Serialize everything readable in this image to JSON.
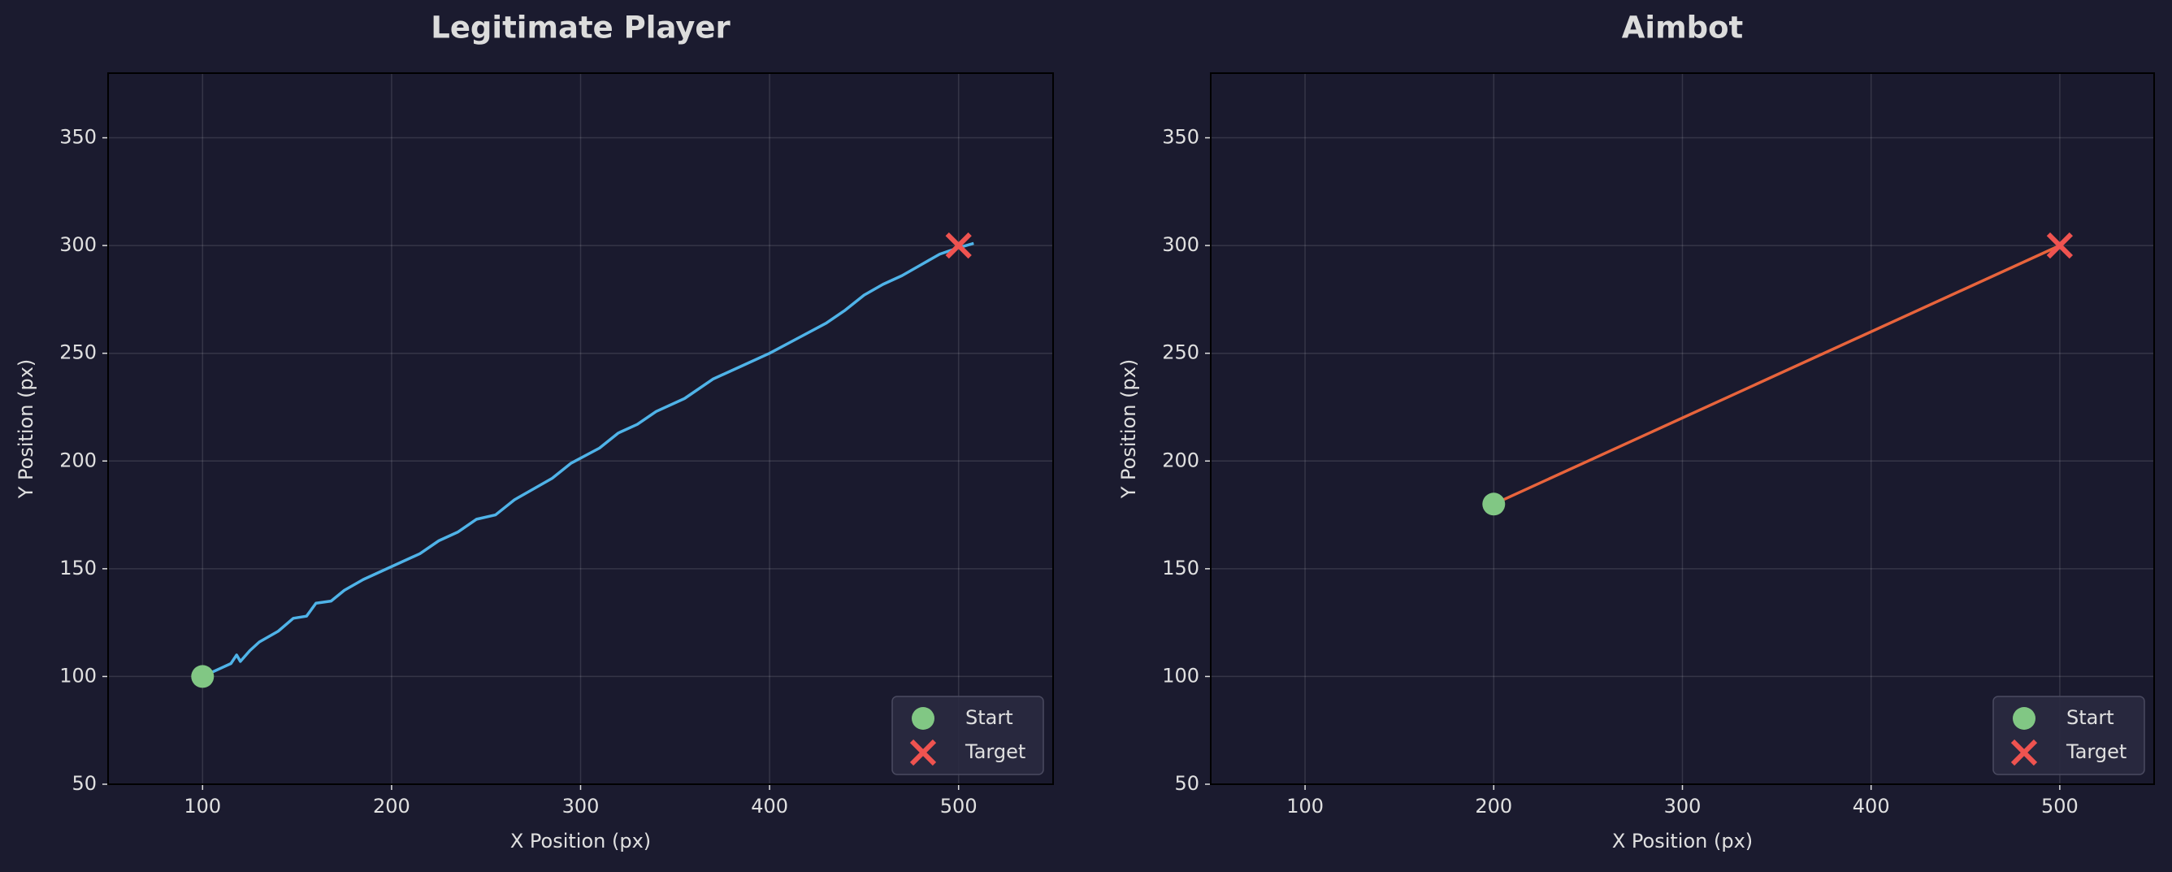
{
  "chart_data": [
    {
      "type": "line",
      "title": "Legitimate Player",
      "xlabel": "X Position (px)",
      "ylabel": "Y Position (px)",
      "xlim": [
        50,
        550
      ],
      "ylim": [
        50,
        380
      ],
      "xticks": [
        100,
        200,
        300,
        400,
        500
      ],
      "yticks": [
        50,
        100,
        150,
        200,
        250,
        300,
        350
      ],
      "grid": true,
      "legend": "lower right",
      "series": [
        {
          "color": "#4fb3e8",
          "marker": "none",
          "x": [
            100,
            110,
            115,
            118,
            120,
            125,
            130,
            140,
            148,
            155,
            160,
            168,
            175,
            185,
            195,
            205,
            215,
            225,
            235,
            245,
            255,
            265,
            275,
            285,
            295,
            310,
            320,
            330,
            340,
            355,
            370,
            385,
            400,
            415,
            430,
            440,
            450,
            460,
            470,
            480,
            490,
            500,
            508
          ],
          "values": [
            100,
            104,
            106,
            110,
            107,
            112,
            116,
            121,
            127,
            128,
            134,
            135,
            140,
            145,
            149,
            153,
            157,
            163,
            167,
            173,
            175,
            182,
            187,
            192,
            199,
            206,
            213,
            217,
            223,
            229,
            238,
            244,
            250,
            257,
            264,
            270,
            277,
            282,
            286,
            291,
            296,
            299,
            301
          ]
        },
        {
          "name": "Start",
          "color": "#81c784",
          "marker": "circle",
          "x": [
            100
          ],
          "values": [
            100
          ]
        },
        {
          "name": "Target",
          "color": "#ef5350",
          "marker": "x",
          "x": [
            500
          ],
          "values": [
            300
          ]
        }
      ]
    },
    {
      "type": "line",
      "title": "Aimbot",
      "xlabel": "X Position (px)",
      "ylabel": "Y Position (px)",
      "xlim": [
        50,
        550
      ],
      "ylim": [
        50,
        380
      ],
      "xticks": [
        100,
        200,
        300,
        400,
        500
      ],
      "yticks": [
        50,
        100,
        150,
        200,
        250,
        300,
        350
      ],
      "grid": true,
      "legend": "lower right",
      "series": [
        {
          "color": "#e8643c",
          "marker": "none",
          "x": [
            200,
            500
          ],
          "values": [
            180,
            300
          ]
        },
        {
          "name": "Start",
          "color": "#81c784",
          "marker": "circle",
          "x": [
            200
          ],
          "values": [
            180
          ]
        },
        {
          "name": "Target",
          "color": "#ef5350",
          "marker": "x",
          "x": [
            500
          ],
          "values": [
            300
          ]
        }
      ]
    }
  ]
}
